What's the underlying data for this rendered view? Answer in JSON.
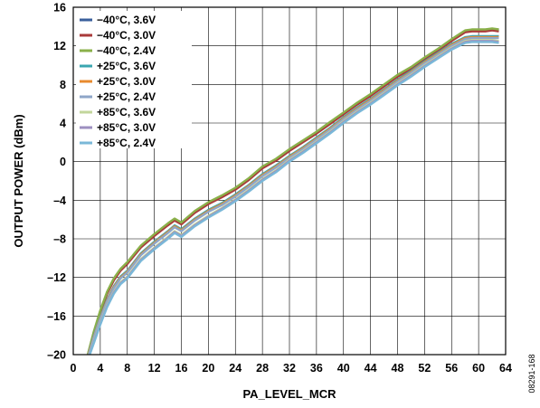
{
  "figure_id": "08291-168",
  "chart_data": {
    "type": "line",
    "title": "",
    "xlabel": "PA_LEVEL_MCR",
    "ylabel": "OUTPUT POWER (dBm)",
    "xlim": [
      0,
      64
    ],
    "ylim": [
      -20,
      16
    ],
    "xticks": [
      0,
      4,
      8,
      12,
      16,
      20,
      24,
      28,
      32,
      36,
      40,
      44,
      48,
      52,
      56,
      60,
      64
    ],
    "yticks": [
      -20,
      -16,
      -12,
      -8,
      -4,
      0,
      4,
      8,
      12,
      16
    ],
    "grid": true,
    "legend_position": "top-left",
    "x": [
      2,
      3,
      4,
      5,
      6,
      7,
      8,
      10,
      12,
      14,
      15,
      16,
      18,
      20,
      22,
      24,
      26,
      28,
      30,
      32,
      34,
      36,
      38,
      40,
      42,
      44,
      46,
      48,
      50,
      52,
      54,
      56,
      58,
      59,
      60,
      61,
      62,
      63
    ],
    "series": [
      {
        "name": "−40°C, 3.6V",
        "color": "#3a5f9c",
        "values": [
          -20.5,
          -17.8,
          -15.5,
          -13.6,
          -12.2,
          -11.2,
          -10.5,
          -8.8,
          -7.6,
          -6.5,
          -6.0,
          -6.4,
          -5.2,
          -4.3,
          -3.6,
          -2.8,
          -1.8,
          -0.6,
          0.2,
          1.2,
          2.1,
          3.0,
          4.0,
          5.0,
          6.0,
          6.9,
          7.9,
          8.9,
          9.7,
          10.7,
          11.6,
          12.6,
          13.5,
          13.6,
          13.6,
          13.6,
          13.7,
          13.6
        ]
      },
      {
        "name": "−40°C, 3.0V",
        "color": "#a93a3a",
        "values": [
          -20.5,
          -17.8,
          -15.6,
          -13.7,
          -12.3,
          -11.3,
          -10.6,
          -8.9,
          -7.7,
          -6.6,
          -6.1,
          -6.5,
          -5.3,
          -4.4,
          -3.7,
          -2.9,
          -1.9,
          -0.7,
          0.1,
          1.1,
          2.0,
          2.9,
          3.9,
          4.9,
          5.9,
          6.8,
          7.8,
          8.8,
          9.6,
          10.6,
          11.5,
          12.5,
          13.4,
          13.5,
          13.5,
          13.5,
          13.6,
          13.5
        ]
      },
      {
        "name": "−40°C, 2.4V",
        "color": "#8ab04a",
        "values": [
          -20.4,
          -17.7,
          -15.4,
          -13.5,
          -12.1,
          -11.1,
          -10.4,
          -8.7,
          -7.5,
          -6.4,
          -5.9,
          -6.3,
          -5.1,
          -4.2,
          -3.5,
          -2.7,
          -1.7,
          -0.5,
          0.3,
          1.3,
          2.2,
          3.1,
          4.1,
          5.1,
          6.1,
          7.0,
          8.0,
          9.0,
          9.8,
          10.8,
          11.7,
          12.7,
          13.6,
          13.7,
          13.7,
          13.7,
          13.8,
          13.7
        ]
      },
      {
        "name": "+25°C, 3.6V",
        "color": "#3aa6b0",
        "values": [
          -20.6,
          -18.1,
          -16.1,
          -14.3,
          -12.9,
          -11.9,
          -11.3,
          -9.5,
          -8.3,
          -7.2,
          -6.6,
          -7.0,
          -5.9,
          -5.0,
          -4.3,
          -3.4,
          -2.4,
          -1.3,
          -0.4,
          0.6,
          1.5,
          2.5,
          3.5,
          4.6,
          5.6,
          6.5,
          7.5,
          8.5,
          9.4,
          10.4,
          11.3,
          12.2,
          12.9,
          13.0,
          13.0,
          13.0,
          13.0,
          13.0
        ]
      },
      {
        "name": "+25°C, 3.0V",
        "color": "#e88a2e",
        "values": [
          -20.6,
          -18.2,
          -16.2,
          -14.4,
          -13.0,
          -12.0,
          -11.4,
          -9.6,
          -8.4,
          -7.3,
          -6.7,
          -7.1,
          -6.0,
          -5.1,
          -4.4,
          -3.5,
          -2.5,
          -1.4,
          -0.5,
          0.5,
          1.4,
          2.4,
          3.4,
          4.5,
          5.5,
          6.4,
          7.4,
          8.4,
          9.3,
          10.3,
          11.2,
          12.1,
          12.8,
          12.9,
          12.9,
          12.9,
          12.9,
          12.9
        ]
      },
      {
        "name": "+25°C, 2.4V",
        "color": "#8ea6c8",
        "values": [
          -20.7,
          -18.3,
          -16.3,
          -14.5,
          -13.1,
          -12.1,
          -11.5,
          -9.7,
          -8.5,
          -7.4,
          -6.8,
          -7.2,
          -6.1,
          -5.2,
          -4.5,
          -3.6,
          -2.6,
          -1.5,
          -0.6,
          0.4,
          1.3,
          2.3,
          3.3,
          4.4,
          5.4,
          6.3,
          7.3,
          8.3,
          9.2,
          10.2,
          11.1,
          12.0,
          12.7,
          12.8,
          12.8,
          12.8,
          12.8,
          12.8
        ]
      },
      {
        "name": "+85°C, 3.6V",
        "color": "#c2d69b",
        "values": [
          -20.8,
          -18.7,
          -16.7,
          -14.9,
          -13.5,
          -12.5,
          -11.9,
          -10.1,
          -8.9,
          -7.8,
          -7.2,
          -7.6,
          -6.5,
          -5.6,
          -4.8,
          -3.9,
          -2.9,
          -1.8,
          -0.9,
          0.2,
          1.1,
          2.1,
          3.1,
          4.2,
          5.2,
          6.1,
          7.1,
          8.1,
          9.0,
          10.0,
          10.9,
          11.8,
          12.5,
          12.6,
          12.6,
          12.6,
          12.6,
          12.5
        ]
      },
      {
        "name": "+85°C, 3.0V",
        "color": "#9d8fc0",
        "values": [
          -20.8,
          -18.8,
          -16.8,
          -15.0,
          -13.6,
          -12.6,
          -12.0,
          -10.2,
          -9.0,
          -7.9,
          -7.3,
          -7.7,
          -6.6,
          -5.7,
          -4.9,
          -4.0,
          -3.0,
          -1.9,
          -1.0,
          0.1,
          1.0,
          2.0,
          3.0,
          4.1,
          5.1,
          6.0,
          7.0,
          8.0,
          8.9,
          9.9,
          10.8,
          11.7,
          12.4,
          12.5,
          12.5,
          12.5,
          12.5,
          12.4
        ]
      },
      {
        "name": "+85°C, 2.4V",
        "color": "#7ab8d8",
        "values": [
          -20.9,
          -18.9,
          -16.9,
          -15.1,
          -13.7,
          -12.7,
          -12.1,
          -10.3,
          -9.1,
          -8.0,
          -7.4,
          -7.8,
          -6.7,
          -5.8,
          -5.0,
          -4.1,
          -3.1,
          -2.0,
          -1.1,
          0.0,
          0.9,
          1.9,
          2.9,
          4.0,
          5.0,
          5.9,
          6.9,
          7.9,
          8.8,
          9.8,
          10.7,
          11.6,
          12.3,
          12.4,
          12.4,
          12.4,
          12.4,
          12.3
        ]
      }
    ]
  }
}
